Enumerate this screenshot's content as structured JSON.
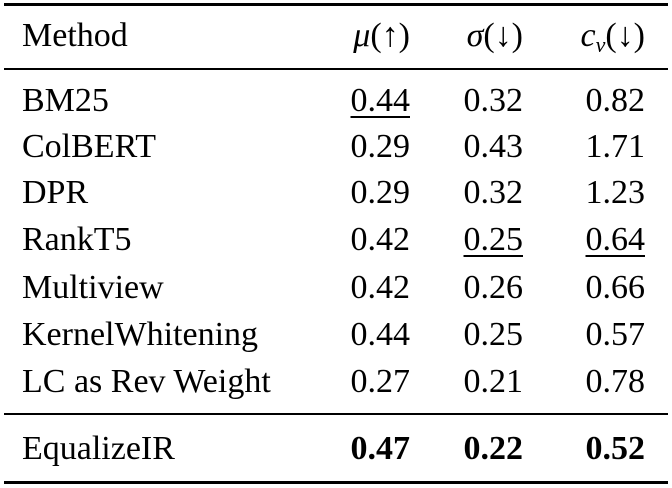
{
  "table": {
    "headers": {
      "method": "Method",
      "mean_symbol": "μ",
      "mean_dir": "(↑)",
      "std_symbol": "σ",
      "std_dir": "(↓)",
      "cv_symbol": "c",
      "cv_sub": "v",
      "cv_dir": "(↓)"
    },
    "rows": [
      {
        "method": "BM25",
        "mu": "0.44",
        "sigma": "0.32",
        "cv": "0.82"
      },
      {
        "method": "ColBERT",
        "mu": "0.29",
        "sigma": "0.43",
        "cv": "1.71"
      },
      {
        "method": "DPR",
        "mu": "0.29",
        "sigma": "0.32",
        "cv": "1.23"
      },
      {
        "method": "RankT5",
        "mu": "0.42",
        "sigma": "0.25",
        "cv": "0.64"
      },
      {
        "method": "Multiview",
        "mu": "0.42",
        "sigma": "0.26",
        "cv": "0.66"
      },
      {
        "method": "KernelWhitening",
        "mu": "0.44",
        "sigma": "0.25",
        "cv": "0.57"
      },
      {
        "method": "LC as Rev Weight",
        "mu": "0.27",
        "sigma": "0.21",
        "cv": "0.78"
      }
    ],
    "final_row": {
      "method": "EqualizeIR",
      "mu": "0.47",
      "sigma": "0.22",
      "cv": "0.52"
    }
  }
}
